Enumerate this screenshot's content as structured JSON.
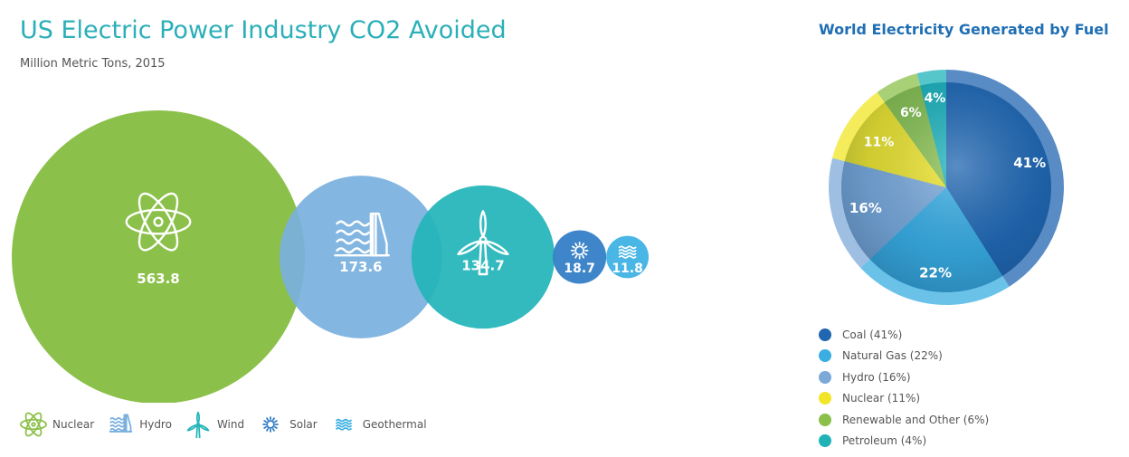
{
  "left_chart": {
    "title": "US Electric Power Industry CO2 Avoided",
    "subtitle": "Million Metric Tons, 2015"
  },
  "right_chart": {
    "title": "World Electricity Generated by Fuel"
  },
  "chart_data": [
    {
      "type": "bubble",
      "title": "US Electric Power Industry CO2 Avoided",
      "subtitle": "Million Metric Tons, 2015",
      "categories": [
        "Nuclear",
        "Hydro",
        "Wind",
        "Solar",
        "Geothermal"
      ],
      "values": [
        563.8,
        173.6,
        134.7,
        18.7,
        11.8
      ],
      "value_labels": [
        "563.8",
        "173.6",
        "134.7",
        "18.7",
        "11.8"
      ],
      "icons": [
        "atom-icon",
        "hydro-icon",
        "wind-turbine-icon",
        "sun-icon",
        "geothermal-waves-icon"
      ],
      "colors": [
        "#8bc04a",
        "#7ab0de",
        "#24b5b9",
        "#2f7cc5",
        "#3cb0e3"
      ],
      "legend_position": "bottom"
    },
    {
      "type": "pie",
      "title": "World Electricity Generated by Fuel",
      "categories": [
        "Coal",
        "Natural Gas",
        "Hydro",
        "Nuclear",
        "Renewable and Other",
        "Petroleum"
      ],
      "values": [
        41,
        22,
        16,
        11,
        6,
        4
      ],
      "slice_labels": [
        "41%",
        "22%",
        "16%",
        "11%",
        "6%",
        "4%"
      ],
      "legend_labels": [
        "Coal (41%)",
        "Natural Gas (22%)",
        "Hydro (16%)",
        "Nuclear (11%)",
        "Renewable and Other (6%)",
        "Petroleum (4%)"
      ],
      "colors": [
        "#2166b0",
        "#3aaee2",
        "#7da9d8",
        "#f2e526",
        "#8bc04a",
        "#1fb3b8"
      ],
      "start_angle_deg": 0,
      "direction": "clockwise",
      "legend_position": "bottom"
    }
  ]
}
